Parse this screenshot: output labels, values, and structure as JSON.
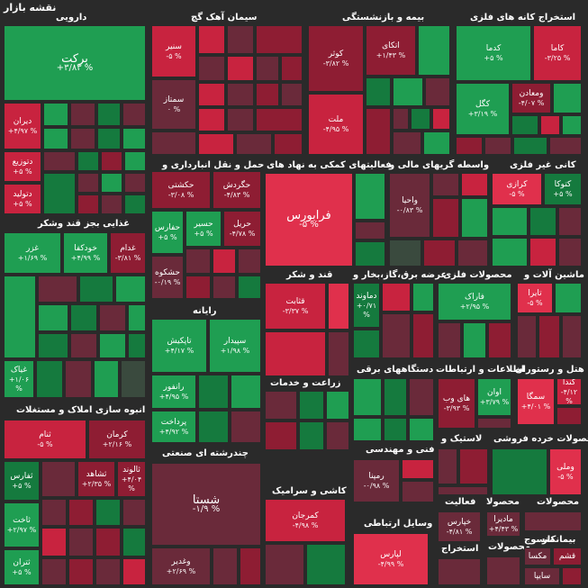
{
  "map_title": "نقشه بازار",
  "sections": {
    "darouei": "دارویی",
    "siman": "سیمان آهک گچ",
    "bime": "بیمه و بازنشستگی",
    "estekhraj": "استخراج کانه های فلزی",
    "haml": "حمل و نقل انبارداری و",
    "faaliat_komaki": "فعالیتهای کمکی به نهاد های",
    "vasete": "واسطه گریهای مالی و",
    "kani": "کانی غیر فلزی",
    "ghaza": "غذایی بجز قند وشکر",
    "rayane": "رایانه",
    "ghand": "قند و شکر",
    "arze": "عرضه برق،گاز،بخار و",
    "mahsoolat_felezi": "محصولات فلزی",
    "mashin": "ماشین آلات و",
    "zeraat": "زراعت و خدمات",
    "dastgah": "دستگاههای برقی",
    "etelaat": "اطلاعات و ارتباطات",
    "hotel": "هتل و رستوران",
    "anboh": "انبوه سازی املاک و مستغلات",
    "chand": "چندرشته ای صنعتی",
    "fani": "فنی و مهندسی",
    "lastik": "لاستیک و",
    "khorde": "محصولات خرده فروشی",
    "kashi": "کاشی و سرامیک",
    "faaliat": "فعالیت",
    "mahsoolat2": "محصولا",
    "mahsoolat3": "محصولات",
    "vasael": "وسایل ارتباطی",
    "estekhraj2": "استخراج",
    "mahsoolat4": "محصولات",
    "bimankar": "بیمانکار",
    "mansoj": "منسوج"
  },
  "tiles": {
    "barekat": {
      "name": "برکت",
      "value": "+۳/۸۳ %"
    },
    "diran": {
      "name": "دیران",
      "value": "+۴/۹۷ %"
    },
    "dtozi": {
      "name": "دتوزیع",
      "value": "+۵ %"
    },
    "dtolid": {
      "name": "دتولید",
      "value": "+۵ %"
    },
    "snir": {
      "name": "سنیر",
      "value": "-۵ %"
    },
    "semtaz": {
      "name": "سمتاز",
      "value": "۰ %"
    },
    "kosar": {
      "name": "کوثر",
      "value": "-۳/۸۲ %"
    },
    "atkai": {
      "name": "اتکای",
      "value": "+۱/۴۳ %"
    },
    "mellat": {
      "name": "ملت",
      "value": "-۴/۹۵ %"
    },
    "kadma": {
      "name": "کدما",
      "value": "+۵ %"
    },
    "kama": {
      "name": "کاما",
      "value": "-۳/۲۵ %"
    },
    "kgol": {
      "name": "کگل",
      "value": "+۳/۱۹ %"
    },
    "vmaadan": {
      "name": "ومعادن",
      "value": "-۴/۰۷ %"
    },
    "hkeshti": {
      "name": "حکشتی",
      "value": "-۳/۰۸ %"
    },
    "hgardesh": {
      "name": "حگردش",
      "value": "-۴/۸۳ %"
    },
    "hafars": {
      "name": "حفارس",
      "value": "+۵ %"
    },
    "hasir": {
      "name": "حسیر",
      "value": "+۵ %"
    },
    "harail": {
      "name": "حریل",
      "value": "-۴/۷۸ %"
    },
    "hashkoh": {
      "name": "حشکوه",
      "value": "-۰/۱۹ %"
    },
    "farabours": {
      "name": "فرابورس",
      "value": "-۵ %"
    },
    "vahya": {
      "name": "واحیا",
      "value": "-۰/۸۳ %"
    },
    "kerazi": {
      "name": "کرازی",
      "value": "-۵ %"
    },
    "katoka": {
      "name": "کتوکا",
      "value": "+۵ %"
    },
    "khodka": {
      "name": "خودکفا",
      "value": "+۴/۹۹ %"
    },
    "ghazar": {
      "name": "غزر",
      "value": "+۱/۶۹ %"
    },
    "ghadam": {
      "name": "غدام",
      "value": "-۳/۸۱ %"
    },
    "ghyak": {
      "name": "غیاک",
      "value": "+۱/۰۶ %"
    },
    "tapikesh": {
      "name": "تاپکیش",
      "value": "+۴/۱۷ %"
    },
    "sepidar": {
      "name": "سپیدار",
      "value": "+۱/۹۸ %"
    },
    "ranfour": {
      "name": "رانفور",
      "value": "+۴/۹۵ %"
    },
    "pardakht": {
      "name": "پرداخت",
      "value": "+۴/۹۲ %"
    },
    "ghasabet": {
      "name": "قثابت",
      "value": "-۳/۳۷ %"
    },
    "damavand": {
      "name": "دماوند",
      "value": "+۰/۷۱ %"
    },
    "faraak": {
      "name": "فاراک",
      "value": "+۲/۹۵ %"
    },
    "tayra": {
      "name": "تایرا",
      "value": "-۵ %"
    },
    "hayweb": {
      "name": "های وب",
      "value": "-۳/۹۳ %"
    },
    "avan": {
      "name": "اوان",
      "value": "+۳/۷۹ %"
    },
    "samga": {
      "name": "سمگا",
      "value": "+۴/۰۱ %"
    },
    "ganda": {
      "name": "گندا",
      "value": "-۴/۱۲ %"
    },
    "sanam": {
      "name": "ثنام",
      "value": "-۵ %"
    },
    "karman": {
      "name": "کرمان",
      "value": "+۲/۱۶ %"
    },
    "safares": {
      "name": "ثفارس",
      "value": "+۵ %"
    },
    "shahed": {
      "name": "ثشاهد",
      "value": "+۲/۳۵ %"
    },
    "saloud": {
      "name": "ثالوند",
      "value": "+۴/۰۴ %"
    },
    "sakht": {
      "name": "ثاخت",
      "value": "+۲/۹۷ %"
    },
    "saran": {
      "name": "ثتران",
      "value": "+۵ %"
    },
    "shasta": {
      "name": "شستا",
      "value": "-۱/۹ %"
    },
    "vghadir": {
      "name": "وغدیر",
      "value": "+۲/۶۹ %"
    },
    "rampna": {
      "name": "رمپنا",
      "value": "-۰/۹۸ %"
    },
    "vmeli": {
      "name": "وملی",
      "value": "-۵ %"
    },
    "kamarjan": {
      "name": "کمرجان",
      "value": "-۴/۹۸ %"
    },
    "khaparse": {
      "name": "خپارس",
      "value": "-۴/۸۱ %"
    },
    "madira": {
      "name": "مادیرا",
      "value": "+۴/۴۳ %"
    },
    "lapars": {
      "name": "لپارس",
      "value": "-۴/۹۹ %"
    },
    "maksa": {
      "name": "مکسا",
      "value": ""
    },
    "saipa": {
      "name": "سایپا",
      "value": ""
    },
    "ghasm": {
      "name": "قشم",
      "value": ""
    }
  }
}
